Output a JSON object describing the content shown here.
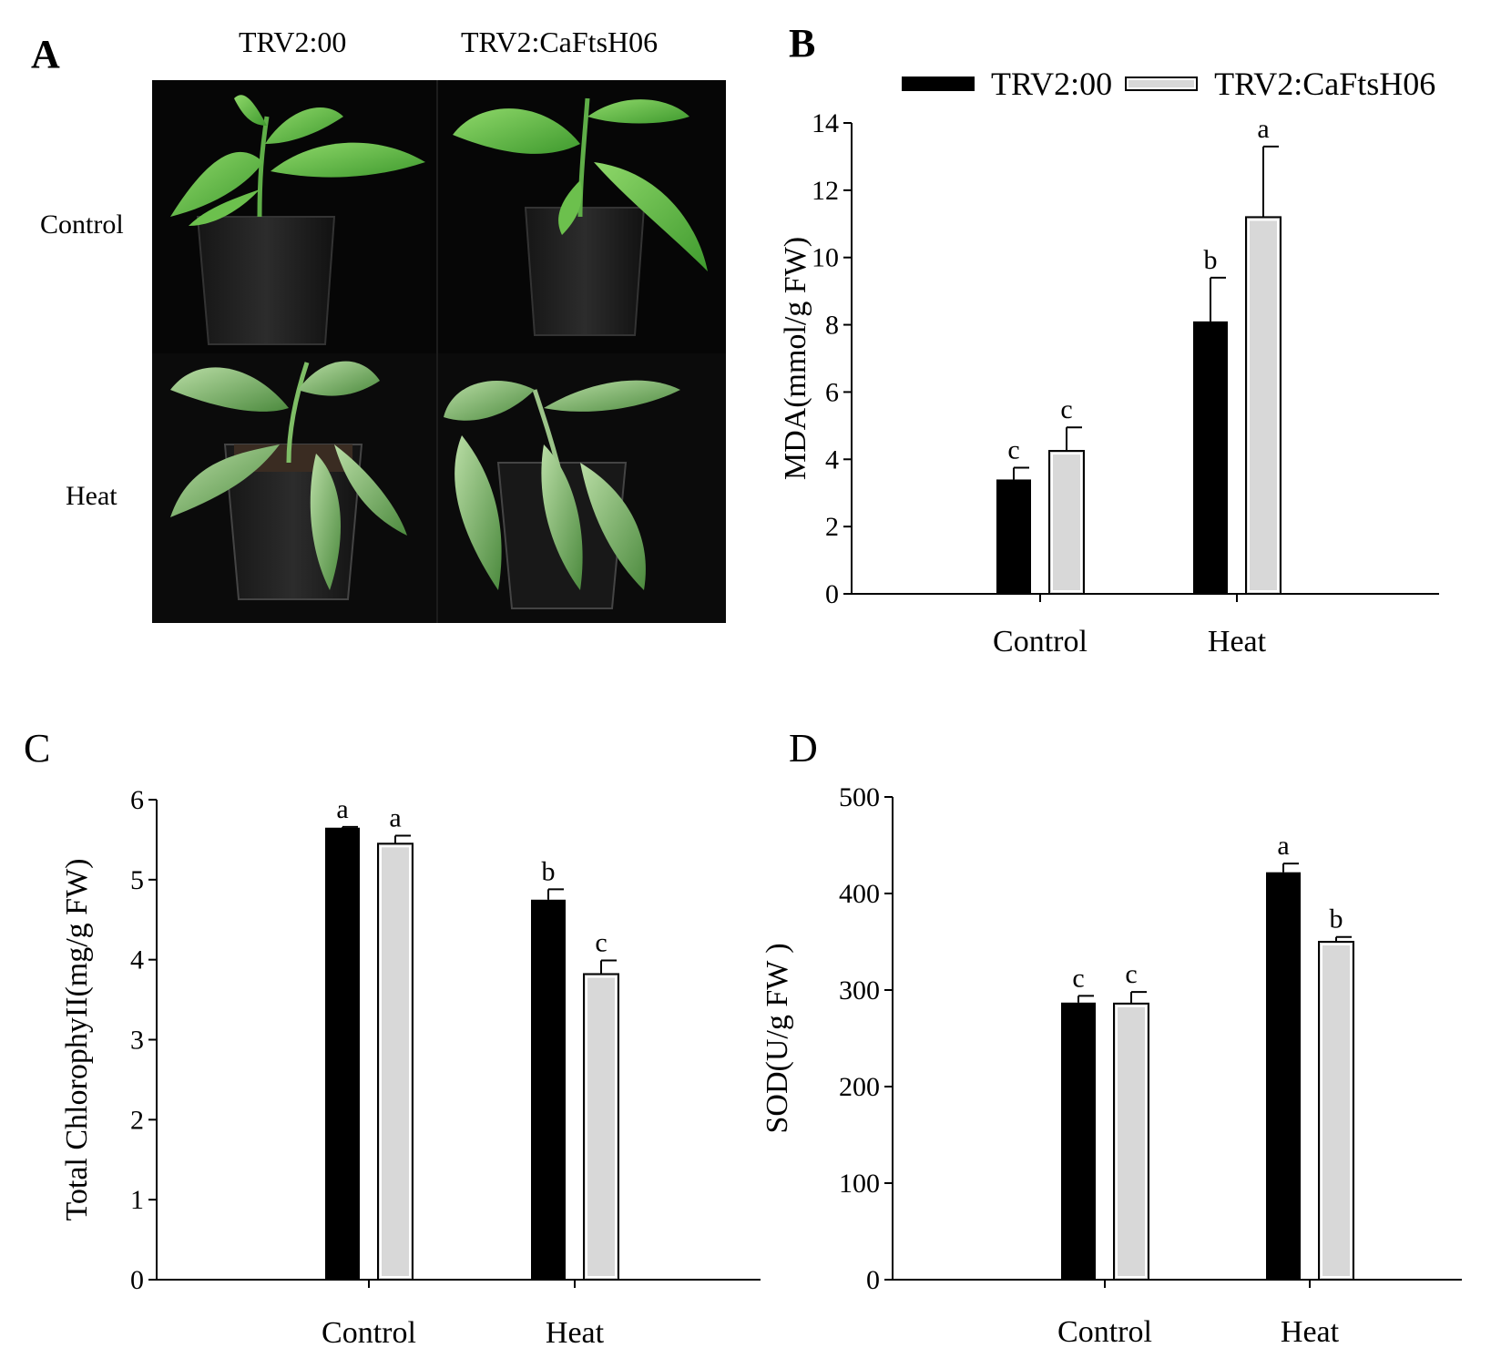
{
  "panels": {
    "A": {
      "letter": "A",
      "columns": [
        "TRV2:00",
        "TRV2:CaFtsH06"
      ],
      "rows": [
        "Control",
        "Heat"
      ]
    },
    "B": {
      "letter": "B"
    },
    "C": {
      "letter": "C"
    },
    "D": {
      "letter": "D"
    }
  },
  "legend": {
    "series": [
      {
        "name": "TRV2:00",
        "color": "#000000"
      },
      {
        "name": "TRV2:CaFtsH06",
        "color": "#d8d8d8"
      }
    ]
  },
  "chart_data": [
    {
      "panel": "B",
      "type": "bar",
      "title": "",
      "xlabel": "",
      "ylabel": "MDA(mmol/g FW)",
      "categories": [
        "Control",
        "Heat"
      ],
      "ylim": [
        0,
        14
      ],
      "yticks": [
        "0",
        "2",
        "4",
        "6",
        "8",
        "10",
        "12",
        "14"
      ],
      "series": [
        {
          "name": "TRV2:00",
          "values": [
            3.4,
            8.1
          ],
          "errors": [
            0.35,
            1.3
          ],
          "letters": [
            "c",
            "b"
          ]
        },
        {
          "name": "TRV2:CaFtsH06",
          "values": [
            4.25,
            11.2
          ],
          "errors": [
            0.7,
            2.1
          ],
          "letters": [
            "c",
            "a"
          ]
        }
      ]
    },
    {
      "panel": "C",
      "type": "bar",
      "title": "",
      "xlabel": "",
      "ylabel": "Total ChlorophyII(mg/g FW)",
      "categories": [
        "Control",
        "Heat"
      ],
      "ylim": [
        0,
        6
      ],
      "yticks": [
        "0",
        "1",
        "2",
        "3",
        "4",
        "5",
        "6"
      ],
      "series": [
        {
          "name": "TRV2:00",
          "values": [
            5.65,
            4.75
          ],
          "errors": [
            0.01,
            0.13
          ],
          "letters": [
            "a",
            "b"
          ]
        },
        {
          "name": "TRV2:CaFtsH06",
          "values": [
            5.45,
            3.82
          ],
          "errors": [
            0.1,
            0.17
          ],
          "letters": [
            "a",
            "c"
          ]
        }
      ]
    },
    {
      "panel": "D",
      "type": "bar",
      "title": "",
      "xlabel": "",
      "ylabel": "SOD(U/g FW )",
      "categories": [
        "Control",
        "Heat"
      ],
      "ylim": [
        0,
        500
      ],
      "yticks": [
        "0",
        "100",
        "200",
        "300",
        "400",
        "500"
      ],
      "series": [
        {
          "name": "TRV2:00",
          "values": [
            287,
            422
          ],
          "errors": [
            7,
            9
          ],
          "letters": [
            "c",
            "a"
          ]
        },
        {
          "name": "TRV2:CaFtsH06",
          "values": [
            286,
            350
          ],
          "errors": [
            12,
            5
          ],
          "letters": [
            "c",
            "b"
          ]
        }
      ]
    }
  ]
}
